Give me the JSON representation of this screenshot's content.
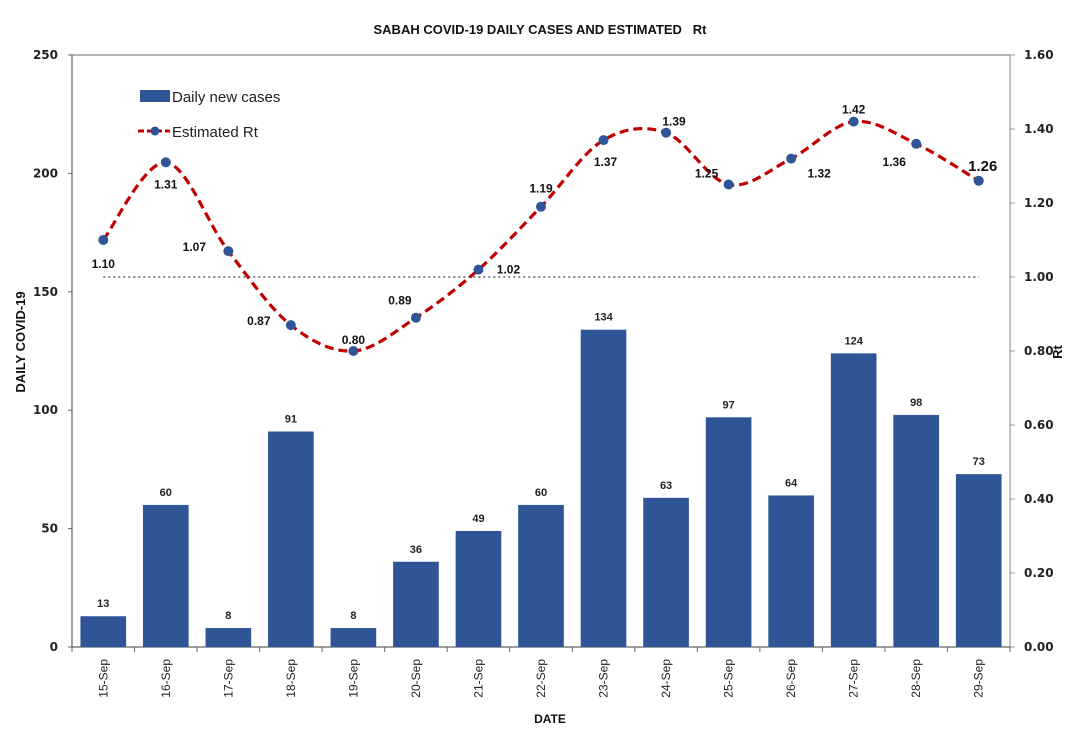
{
  "chart_data": {
    "type": "bar",
    "combo": "bar+line (dual axis)",
    "title": "SABAH COVID-19 DAILY CASES AND ESTIMATED   Rt",
    "xlabel": "DATE",
    "ylabel": "DAILY COVID-19",
    "y2label": "Rt",
    "ylim": [
      0,
      250
    ],
    "y2lim": [
      0,
      1.6
    ],
    "yticks": [
      "0",
      "50",
      "100",
      "150",
      "200",
      "250"
    ],
    "y2ticks": [
      "0.00",
      "0.20",
      "0.40",
      "0.60",
      "0.80",
      "1.00",
      "1.20",
      "1.40",
      "1.60"
    ],
    "categories": [
      "15-Sep",
      "16-Sep",
      "17-Sep",
      "18-Sep",
      "19-Sep",
      "20-Sep",
      "21-Sep",
      "22-Sep",
      "23-Sep",
      "24-Sep",
      "25-Sep",
      "26-Sep",
      "27-Sep",
      "28-Sep",
      "29-Sep"
    ],
    "series": [
      {
        "name": "Daily new cases",
        "type": "bar",
        "axis": "left",
        "color": "#2F5597",
        "values": [
          13,
          60,
          8,
          91,
          8,
          36,
          49,
          60,
          134,
          63,
          97,
          64,
          124,
          98,
          73
        ]
      },
      {
        "name": "Estimated Rt",
        "type": "line",
        "style": "dashed smoothed with circle markers",
        "axis": "right",
        "color": "#C00000",
        "marker_color": "#2F5597",
        "values": [
          1.1,
          1.31,
          1.07,
          0.87,
          0.8,
          0.89,
          1.02,
          1.19,
          1.37,
          1.39,
          1.25,
          1.32,
          1.42,
          1.36,
          1.26
        ],
        "labels": [
          "1.10",
          "1.31",
          "1.07",
          "0.87",
          "0.80",
          "0.89",
          "1.02",
          "1.19",
          "1.37",
          "1.39",
          "1.25",
          "1.32",
          "1.42",
          "1.36",
          "1.26"
        ]
      }
    ],
    "reference_line": {
      "axis": "right",
      "value": 1.0,
      "style": "dotted",
      "color": "#888888"
    },
    "legend": {
      "placement": "top-left",
      "entries": [
        "Daily new cases",
        "Estimated Rt"
      ]
    },
    "grid": false
  }
}
